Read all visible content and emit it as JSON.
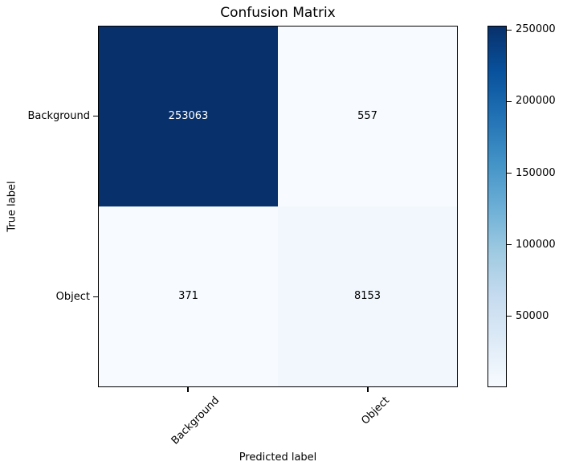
{
  "chart_data": {
    "type": "heatmap",
    "title": "Confusion Matrix",
    "xlabel": "Predicted label",
    "ylabel": "True label",
    "x_categories": [
      "Background",
      "Object"
    ],
    "y_categories": [
      "Background",
      "Object"
    ],
    "matrix": [
      [
        253063,
        557
      ],
      [
        371,
        8153
      ]
    ],
    "vmin": 371,
    "vmax": 253063,
    "colorbar_ticks": [
      250000,
      200000,
      150000,
      100000,
      50000
    ],
    "colorbar_position": "right",
    "grid": false,
    "colormap": {
      "name": "Blues",
      "stops": [
        "#f7fbff",
        "#deebf7",
        "#c6dbef",
        "#9ecae1",
        "#6baed6",
        "#4292c6",
        "#2171b5",
        "#08519c",
        "#08306b"
      ]
    },
    "colors": {
      "cell_text_on_dark": "#ffffff",
      "cell_text_on_light": "#000000",
      "axis": "#000000",
      "background": "#ffffff"
    }
  }
}
